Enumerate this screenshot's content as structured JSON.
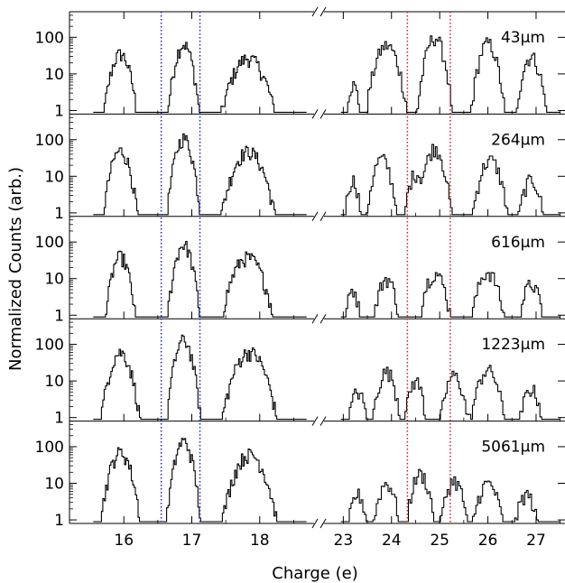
{
  "chart_data": {
    "type": "histogram",
    "xlabel": "Charge (e)",
    "ylabel": "Normalized Counts (arb.)",
    "yscale": "log",
    "ylim": [
      0.8,
      500
    ],
    "y_ticks": [
      1,
      10,
      100
    ],
    "y_tick_labels": [
      "1",
      "10",
      "100"
    ],
    "x_axis_broken": true,
    "x_segments": [
      {
        "xlim": [
          15.2,
          18.8
        ],
        "ticks": [
          16,
          17,
          18
        ],
        "tick_labels": [
          "16",
          "17",
          "18"
        ]
      },
      {
        "xlim": [
          22.6,
          27.6
        ],
        "ticks": [
          23,
          24,
          25,
          26,
          27
        ],
        "tick_labels": [
          "23",
          "24",
          "25",
          "26",
          "27"
        ]
      }
    ],
    "reference_lines": [
      {
        "x": 16.55,
        "color": "#1f1fd6",
        "style": "dotted"
      },
      {
        "x": 17.12,
        "color": "#1f1fd6",
        "style": "dotted"
      },
      {
        "x": 24.33,
        "color": "#d62020",
        "style": "dotted"
      },
      {
        "x": 25.22,
        "color": "#d62020",
        "style": "dotted"
      }
    ],
    "line_color": "#000000",
    "panels": [
      {
        "label": "43μm",
        "peaks": [
          [
            15.95,
            35,
            0.09
          ],
          [
            16.88,
            65,
            0.08
          ],
          [
            17.83,
            27,
            0.15
          ],
          [
            23.2,
            5,
            0.08
          ],
          [
            23.9,
            60,
            0.15
          ],
          [
            24.9,
            100,
            0.12
          ],
          [
            26.0,
            70,
            0.12
          ],
          [
            26.9,
            30,
            0.12
          ]
        ]
      },
      {
        "label": "264μm",
        "peaks": [
          [
            15.95,
            50,
            0.09
          ],
          [
            16.88,
            110,
            0.08
          ],
          [
            17.83,
            48,
            0.14
          ],
          [
            23.2,
            8,
            0.08
          ],
          [
            23.8,
            30,
            0.12
          ],
          [
            24.5,
            12,
            0.1
          ],
          [
            24.9,
            60,
            0.12
          ],
          [
            26.05,
            28,
            0.14
          ],
          [
            26.9,
            8,
            0.12
          ]
        ]
      },
      {
        "label": "616μm",
        "peaks": [
          [
            15.95,
            40,
            0.08
          ],
          [
            16.88,
            85,
            0.08
          ],
          [
            17.82,
            38,
            0.14
          ],
          [
            23.2,
            5,
            0.08
          ],
          [
            23.9,
            10,
            0.12
          ],
          [
            24.9,
            14,
            0.14
          ],
          [
            26.0,
            15,
            0.14
          ],
          [
            26.9,
            7,
            0.12
          ]
        ]
      },
      {
        "label": "1223μm",
        "peaks": [
          [
            15.95,
            60,
            0.1
          ],
          [
            16.88,
            130,
            0.08
          ],
          [
            17.85,
            62,
            0.14
          ],
          [
            23.3,
            5,
            0.1
          ],
          [
            23.9,
            18,
            0.12
          ],
          [
            24.5,
            10,
            0.1
          ],
          [
            25.3,
            14,
            0.12
          ],
          [
            26.0,
            20,
            0.14
          ],
          [
            26.9,
            6,
            0.12
          ]
        ]
      },
      {
        "label": "5061μm",
        "peaks": [
          [
            15.95,
            70,
            0.1
          ],
          [
            16.88,
            140,
            0.08
          ],
          [
            17.85,
            62,
            0.14
          ],
          [
            23.3,
            5,
            0.1
          ],
          [
            23.9,
            10,
            0.12
          ],
          [
            24.6,
            18,
            0.12
          ],
          [
            25.3,
            12,
            0.12
          ],
          [
            26.0,
            10,
            0.14
          ],
          [
            26.8,
            5,
            0.12
          ]
        ]
      }
    ]
  }
}
